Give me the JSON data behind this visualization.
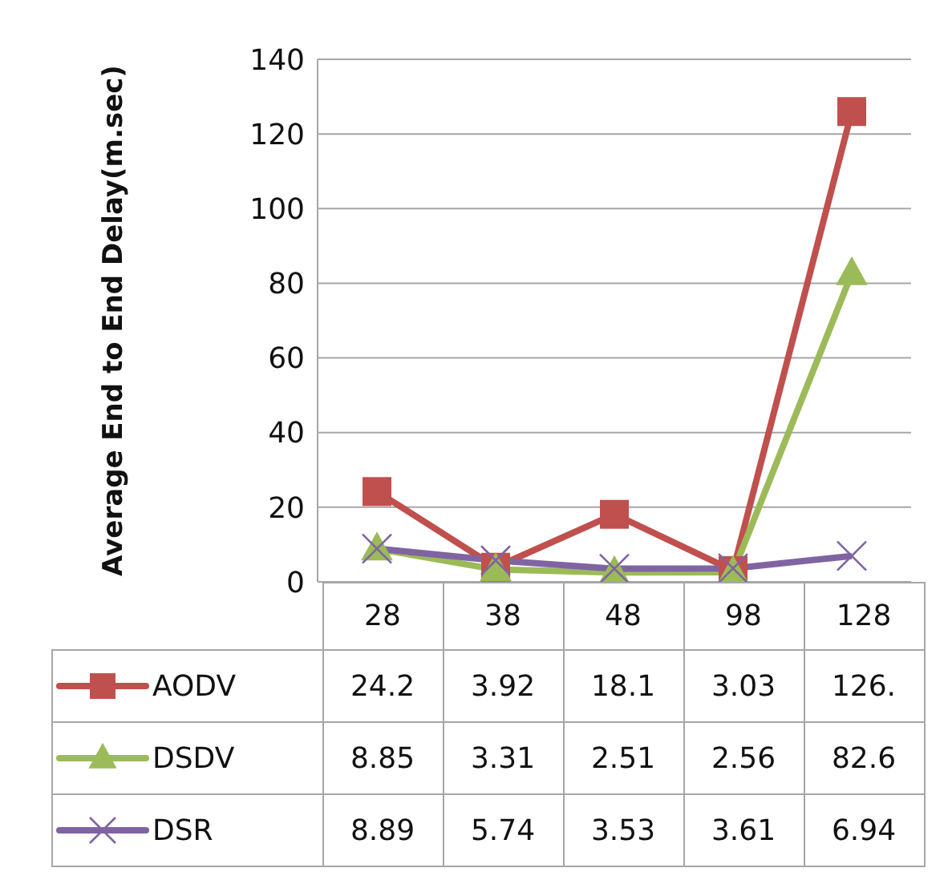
{
  "chart_data": {
    "type": "line",
    "ylabel": "Average End to End Delay(m.sec)",
    "categories": [
      "28",
      "38",
      "48",
      "98",
      "128"
    ],
    "ylim": [
      0,
      140
    ],
    "yticks": [
      0,
      20,
      40,
      60,
      80,
      100,
      120,
      140
    ],
    "grid": "y",
    "legend": "bottom left",
    "series": [
      {
        "name": "AODV",
        "color": "#c0504d",
        "marker": "square",
        "values": [
          24.2,
          3.92,
          18.1,
          3.03,
          126
        ],
        "value_labels": [
          "24.2",
          "3.92",
          "18.1",
          "3.03",
          "126."
        ]
      },
      {
        "name": "DSDV",
        "color": "#9bbb59",
        "marker": "triangle",
        "values": [
          8.85,
          3.31,
          2.51,
          2.56,
          82.6
        ],
        "value_labels": [
          "8.85",
          "3.31",
          "2.51",
          "2.56",
          "82.6"
        ]
      },
      {
        "name": "DSR",
        "color": "#8064a2",
        "marker": "cross",
        "values": [
          8.89,
          5.74,
          3.53,
          3.61,
          6.94
        ],
        "value_labels": [
          "8.89",
          "5.74",
          "3.53",
          "3.61",
          "6.94"
        ]
      }
    ]
  }
}
